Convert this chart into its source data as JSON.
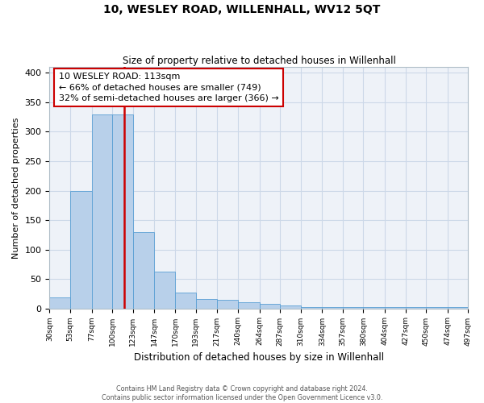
{
  "title": "10, WESLEY ROAD, WILLENHALL, WV12 5QT",
  "subtitle": "Size of property relative to detached houses in Willenhall",
  "xlabel": "Distribution of detached houses by size in Willenhall",
  "ylabel": "Number of detached properties",
  "bin_edges": [
    30,
    53,
    77,
    100,
    123,
    147,
    170,
    193,
    217,
    240,
    264,
    287,
    310,
    334,
    357,
    380,
    404,
    427,
    450,
    474,
    497
  ],
  "bin_labels": [
    "30sqm",
    "53sqm",
    "77sqm",
    "100sqm",
    "123sqm",
    "147sqm",
    "170sqm",
    "193sqm",
    "217sqm",
    "240sqm",
    "264sqm",
    "287sqm",
    "310sqm",
    "334sqm",
    "357sqm",
    "380sqm",
    "404sqm",
    "427sqm",
    "450sqm",
    "474sqm",
    "497sqm"
  ],
  "counts": [
    18,
    200,
    330,
    330,
    130,
    63,
    27,
    16,
    15,
    10,
    8,
    5,
    2,
    2,
    2,
    2,
    2,
    2,
    2,
    2
  ],
  "property_size": 113,
  "bar_color": "#b8d0ea",
  "bar_edge_color": "#5a9fd4",
  "vline_color": "#cc0000",
  "annotation_line1": "10 WESLEY ROAD: 113sqm",
  "annotation_line2": "← 66% of detached houses are smaller (749)",
  "annotation_line3": "32% of semi-detached houses are larger (366) →",
  "annotation_box_color": "#ffffff",
  "annotation_box_edge_color": "#cc0000",
  "ylim": [
    0,
    410
  ],
  "grid_color": "#ccd8e8",
  "background_color": "#eef2f8",
  "footer_line1": "Contains HM Land Registry data © Crown copyright and database right 2024.",
  "footer_line2": "Contains public sector information licensed under the Open Government Licence v3.0."
}
